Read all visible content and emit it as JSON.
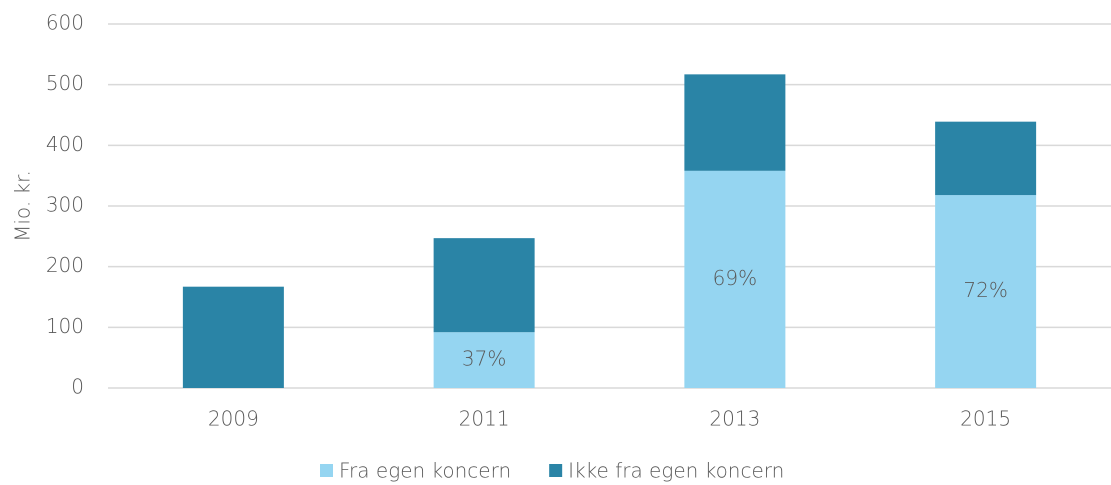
{
  "chart_data": {
    "type": "stacked_bar",
    "ylabel": "Mio. kr.",
    "categories": [
      "2009",
      "2011",
      "2013",
      "2015"
    ],
    "series": [
      {
        "name": "Fra egen koncern",
        "color": "#95d5f1",
        "values": [
          0,
          92,
          358,
          318
        ],
        "data_labels": [
          null,
          "37%",
          "69%",
          "72%"
        ]
      },
      {
        "name": "Ikke fra egen koncern",
        "color": "#2a84a6",
        "values": [
          167,
          155,
          159,
          121
        ]
      }
    ],
    "ylim": [
      0,
      600
    ],
    "yticks": [
      0,
      100,
      200,
      300,
      400,
      500,
      600
    ],
    "grid": true,
    "legend": "bottom"
  }
}
